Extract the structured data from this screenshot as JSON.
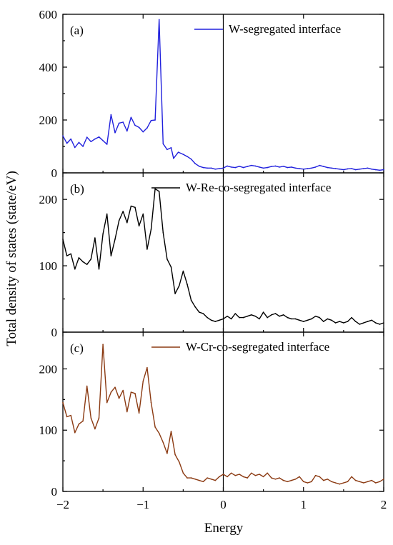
{
  "chart_data": [
    {
      "panel": "(a)",
      "type": "line",
      "legend": "W-segregated interface",
      "legend_placement": "top-right",
      "color": "#2020dd",
      "x_range": [
        -2,
        2
      ],
      "ylim": [
        0,
        600
      ],
      "y_ticks": [
        0,
        200,
        400,
        600
      ],
      "x": [
        -2.0,
        -1.95,
        -1.9,
        -1.85,
        -1.8,
        -1.75,
        -1.7,
        -1.65,
        -1.6,
        -1.55,
        -1.5,
        -1.45,
        -1.4,
        -1.35,
        -1.3,
        -1.25,
        -1.2,
        -1.15,
        -1.1,
        -1.05,
        -1.0,
        -0.95,
        -0.9,
        -0.85,
        -0.8,
        -0.75,
        -0.7,
        -0.65,
        -0.62,
        -0.56,
        -0.5,
        -0.45,
        -0.4,
        -0.35,
        -0.3,
        -0.25,
        -0.2,
        -0.15,
        -0.1,
        -0.05,
        0.0,
        0.05,
        0.1,
        0.15,
        0.2,
        0.25,
        0.3,
        0.35,
        0.4,
        0.45,
        0.5,
        0.55,
        0.6,
        0.65,
        0.7,
        0.75,
        0.8,
        0.85,
        0.9,
        0.95,
        1.0,
        1.05,
        1.1,
        1.15,
        1.2,
        1.25,
        1.3,
        1.35,
        1.4,
        1.45,
        1.5,
        1.55,
        1.6,
        1.65,
        1.7,
        1.75,
        1.8,
        1.85,
        1.9,
        1.95,
        2.0
      ],
      "values": [
        140,
        112,
        128,
        96,
        115,
        100,
        135,
        118,
        128,
        136,
        122,
        108,
        220,
        152,
        188,
        192,
        158,
        210,
        180,
        172,
        155,
        170,
        198,
        200,
        580,
        110,
        88,
        95,
        55,
        78,
        70,
        62,
        52,
        35,
        25,
        20,
        18,
        18,
        14,
        16,
        18,
        26,
        22,
        20,
        25,
        20,
        24,
        28,
        26,
        22,
        18,
        20,
        24,
        26,
        22,
        25,
        20,
        22,
        18,
        16,
        14,
        16,
        18,
        22,
        28,
        24,
        20,
        18,
        16,
        14,
        12,
        15,
        16,
        12,
        14,
        16,
        18,
        14,
        12,
        10,
        12
      ],
      "_note_unused": ""
    },
    {
      "panel": "(b)",
      "type": "line",
      "legend": "W-Re-co-segregated interface",
      "legend_placement": "top-right",
      "color": "#000000",
      "x_range": [
        -2,
        2
      ],
      "ylim": [
        0,
        240
      ],
      "y_ticks": [
        0,
        100,
        200
      ],
      "x": [
        -2.0,
        -1.95,
        -1.9,
        -1.85,
        -1.8,
        -1.75,
        -1.7,
        -1.65,
        -1.6,
        -1.55,
        -1.5,
        -1.45,
        -1.4,
        -1.35,
        -1.3,
        -1.25,
        -1.2,
        -1.15,
        -1.1,
        -1.05,
        -1.0,
        -0.95,
        -0.9,
        -0.85,
        -0.8,
        -0.75,
        -0.7,
        -0.65,
        -0.6,
        -0.55,
        -0.5,
        -0.45,
        -0.4,
        -0.35,
        -0.3,
        -0.25,
        -0.2,
        -0.15,
        -0.1,
        -0.05,
        0.0,
        0.05,
        0.1,
        0.15,
        0.2,
        0.25,
        0.3,
        0.35,
        0.4,
        0.45,
        0.5,
        0.55,
        0.6,
        0.65,
        0.7,
        0.75,
        0.8,
        0.85,
        0.9,
        0.95,
        1.0,
        1.05,
        1.1,
        1.15,
        1.2,
        1.25,
        1.3,
        1.35,
        1.4,
        1.45,
        1.5,
        1.55,
        1.6,
        1.65,
        1.7,
        1.75,
        1.8,
        1.85,
        1.9,
        1.95,
        2.0
      ],
      "values": [
        140,
        115,
        118,
        95,
        112,
        106,
        102,
        110,
        142,
        95,
        148,
        178,
        115,
        140,
        168,
        182,
        165,
        190,
        188,
        160,
        178,
        125,
        155,
        216,
        212,
        150,
        110,
        98,
        58,
        70,
        92,
        72,
        48,
        38,
        30,
        28,
        22,
        18,
        16,
        18,
        20,
        24,
        20,
        28,
        22,
        22,
        24,
        26,
        24,
        20,
        30,
        22,
        26,
        28,
        24,
        26,
        22,
        20,
        20,
        18,
        16,
        18,
        20,
        24,
        22,
        16,
        20,
        18,
        14,
        16,
        14,
        16,
        22,
        16,
        12,
        14,
        16,
        18,
        14,
        12,
        14
      ],
      "_note_unused": ""
    },
    {
      "panel": "(c)",
      "type": "line",
      "legend": "W-Cr-co-segregated interface",
      "legend_placement": "top-right",
      "color": "#8b3a12",
      "x_range": [
        -2,
        2
      ],
      "ylim": [
        0,
        260
      ],
      "y_ticks": [
        0,
        100,
        200
      ],
      "x": [
        -2.0,
        -1.95,
        -1.9,
        -1.85,
        -1.8,
        -1.75,
        -1.7,
        -1.65,
        -1.6,
        -1.55,
        -1.5,
        -1.45,
        -1.4,
        -1.35,
        -1.3,
        -1.25,
        -1.2,
        -1.15,
        -1.1,
        -1.05,
        -1.0,
        -0.95,
        -0.9,
        -0.85,
        -0.8,
        -0.75,
        -0.7,
        -0.65,
        -0.6,
        -0.55,
        -0.5,
        -0.45,
        -0.4,
        -0.35,
        -0.3,
        -0.25,
        -0.2,
        -0.15,
        -0.1,
        -0.05,
        0.0,
        0.05,
        0.1,
        0.15,
        0.2,
        0.25,
        0.3,
        0.35,
        0.4,
        0.45,
        0.5,
        0.55,
        0.6,
        0.65,
        0.7,
        0.75,
        0.8,
        0.85,
        0.9,
        0.95,
        1.0,
        1.05,
        1.1,
        1.15,
        1.2,
        1.25,
        1.3,
        1.35,
        1.4,
        1.45,
        1.5,
        1.55,
        1.6,
        1.65,
        1.7,
        1.75,
        1.8,
        1.85,
        1.9,
        1.95,
        2.0
      ],
      "values": [
        145,
        122,
        124,
        96,
        110,
        115,
        172,
        120,
        102,
        120,
        240,
        145,
        162,
        170,
        152,
        165,
        130,
        162,
        160,
        128,
        180,
        202,
        145,
        105,
        95,
        80,
        62,
        98,
        60,
        48,
        30,
        22,
        22,
        20,
        18,
        16,
        22,
        20,
        18,
        24,
        28,
        24,
        30,
        26,
        28,
        24,
        22,
        30,
        26,
        28,
        24,
        30,
        22,
        20,
        22,
        18,
        16,
        18,
        20,
        24,
        16,
        14,
        16,
        26,
        24,
        18,
        20,
        16,
        14,
        12,
        14,
        16,
        24,
        18,
        16,
        14,
        16,
        18,
        14,
        16,
        20
      ],
      "_note_unused": ""
    }
  ],
  "x_axis": {
    "label": "Energy",
    "ticks": [
      -2,
      -1,
      0,
      1,
      2
    ],
    "tick_labels": [
      "−2",
      "−1",
      "0",
      "1",
      "2"
    ]
  },
  "y_axis_label": "Total density of states (state/eV)"
}
